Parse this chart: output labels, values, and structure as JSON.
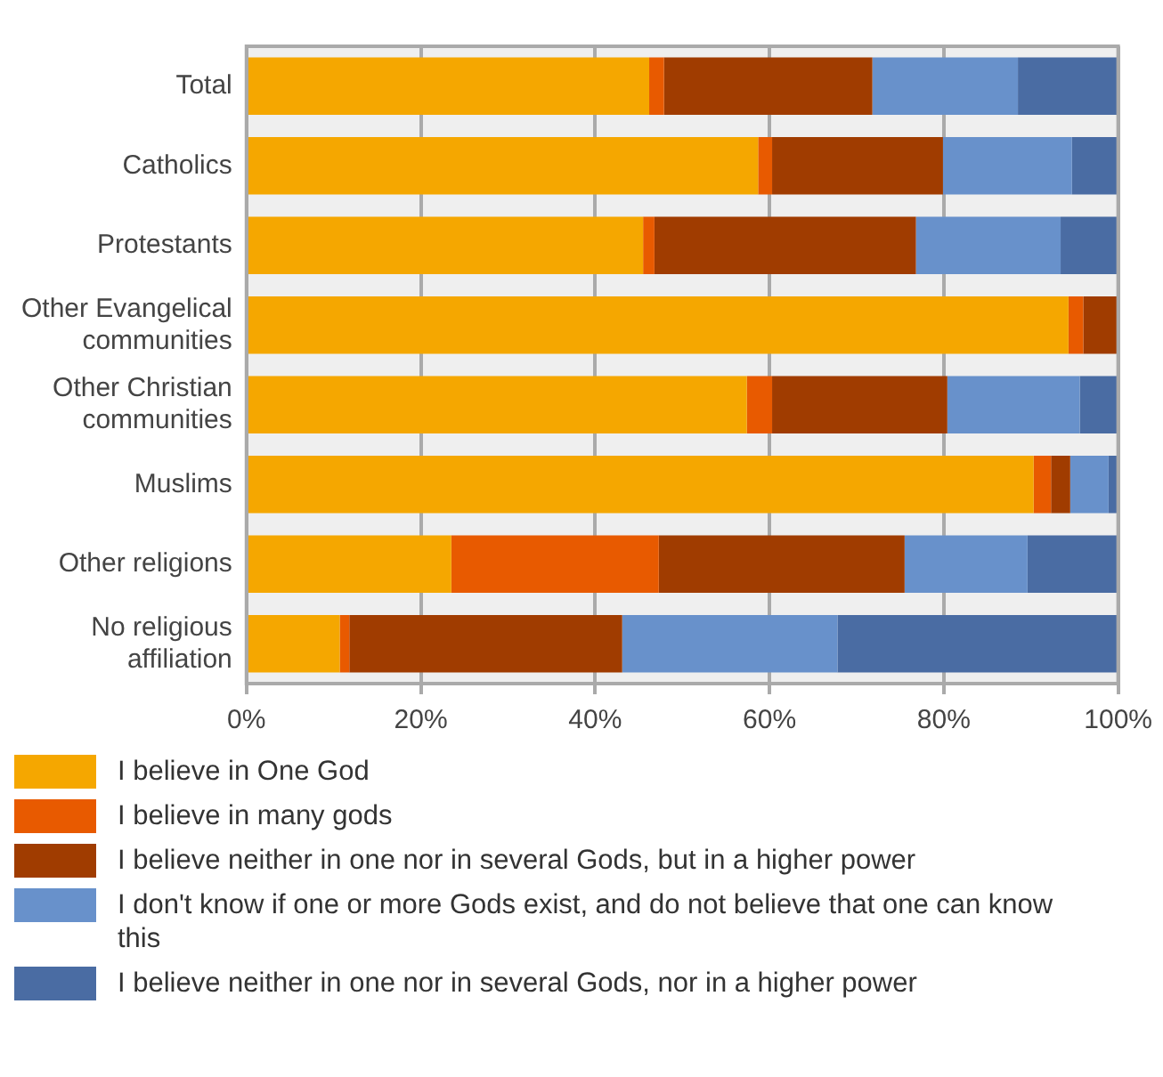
{
  "chart_data": {
    "type": "bar",
    "orientation": "horizontal",
    "stacked": true,
    "categories": [
      "Total",
      "Catholics",
      "Protestants",
      "Other Evangelical communities",
      "Other Christian communities",
      "Muslims",
      "Other religions",
      "No religious affiliation"
    ],
    "series": [
      {
        "name": "I believe in One God",
        "color": "#f5a700",
        "values": [
          46.2,
          58.7,
          45.5,
          94.3,
          57.4,
          90.3,
          23.5,
          10.7
        ]
      },
      {
        "name": "I believe in many gods",
        "color": "#e85a00",
        "values": [
          1.7,
          1.6,
          1.3,
          1.7,
          2.9,
          2.0,
          23.8,
          1.1
        ]
      },
      {
        "name": "I believe neither in one nor in several Gods, but in a higher power",
        "color": "#a03c00",
        "values": [
          23.9,
          19.6,
          30.0,
          4.0,
          20.1,
          2.2,
          28.2,
          31.3
        ]
      },
      {
        "name": "I don't know if one or more Gods exist, and do not believe that one can know this",
        "color": "#6891cb",
        "values": [
          16.7,
          14.8,
          16.6,
          0,
          15.2,
          4.4,
          14.1,
          24.7
        ]
      },
      {
        "name": "I believe neither in one nor in several Gods, nor in a higher power",
        "color": "#4a6ca3",
        "values": [
          11.5,
          5.3,
          6.6,
          0,
          4.4,
          1.1,
          10.4,
          32.2
        ]
      }
    ],
    "xlim": [
      0,
      100
    ],
    "xticks": [
      {
        "value": 0,
        "label": "0%"
      },
      {
        "value": 20,
        "label": "20%"
      },
      {
        "value": 40,
        "label": "40%"
      },
      {
        "value": 60,
        "label": "60%"
      },
      {
        "value": 80,
        "label": "80%"
      },
      {
        "value": 100,
        "label": "100%"
      }
    ],
    "grid": "x",
    "legend": "bottom"
  }
}
